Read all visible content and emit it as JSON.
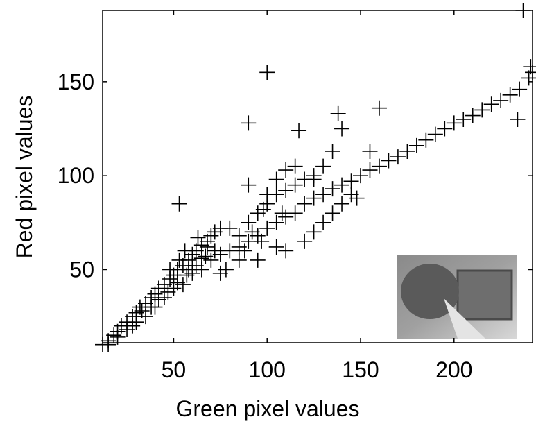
{
  "chart_data": {
    "type": "scatter",
    "xlabel": "Green pixel values",
    "ylabel": "Red pixel values",
    "xlim": [
      12,
      242
    ],
    "ylim": [
      11,
      188
    ],
    "xticks": [
      50,
      100,
      150,
      200
    ],
    "yticks": [
      50,
      100,
      150
    ],
    "color": "#000000",
    "x": [
      12,
      15,
      18,
      20,
      22,
      25,
      28,
      30,
      32,
      35,
      38,
      40,
      42,
      45,
      48,
      50,
      52,
      55,
      58,
      60,
      62,
      65,
      68,
      70,
      72,
      75,
      40,
      45,
      50,
      55,
      60,
      65,
      70,
      75,
      80,
      85,
      90,
      95,
      100,
      105,
      110,
      115,
      120,
      125,
      130,
      135,
      140,
      145,
      150,
      155,
      160,
      165,
      170,
      175,
      180,
      185,
      190,
      195,
      200,
      205,
      210,
      215,
      220,
      225,
      230,
      235,
      240,
      242,
      241,
      80,
      85,
      90,
      95,
      100,
      105,
      110,
      115,
      120,
      125,
      95,
      97,
      105,
      110,
      120,
      125,
      130,
      135,
      140,
      145,
      148,
      100,
      105,
      110,
      115,
      92,
      88,
      85,
      78,
      75,
      90,
      98,
      108,
      100,
      90,
      117,
      138,
      140,
      160,
      135,
      53,
      155,
      237,
      234,
      125,
      130,
      15,
      20,
      25,
      30,
      35,
      28,
      33,
      38,
      42,
      47,
      52,
      57,
      62,
      67,
      72,
      60,
      65,
      68,
      58,
      48,
      53,
      56,
      63
    ],
    "y": [
      10,
      12,
      15,
      17,
      20,
      22,
      25,
      27,
      30,
      32,
      35,
      37,
      40,
      42,
      45,
      47,
      50,
      52,
      55,
      58,
      60,
      63,
      65,
      68,
      70,
      72,
      30,
      35,
      40,
      42,
      48,
      50,
      55,
      58,
      60,
      62,
      65,
      68,
      72,
      75,
      78,
      80,
      85,
      88,
      90,
      93,
      95,
      97,
      100,
      103,
      105,
      108,
      110,
      113,
      116,
      119,
      122,
      125,
      128,
      130,
      132,
      135,
      138,
      140,
      143,
      146,
      152,
      155,
      158,
      72,
      68,
      75,
      80,
      85,
      90,
      92,
      95,
      98,
      100,
      55,
      65,
      62,
      60,
      65,
      70,
      75,
      80,
      85,
      90,
      88,
      90,
      98,
      103,
      105,
      70,
      60,
      55,
      50,
      48,
      95,
      82,
      80,
      155,
      128,
      124,
      133,
      125,
      136,
      113,
      85,
      113,
      188,
      130,
      98,
      105,
      10,
      14,
      18,
      22,
      25,
      20,
      28,
      30,
      34,
      38,
      43,
      47,
      52,
      57,
      60,
      52,
      56,
      62,
      50,
      50,
      55,
      60,
      67
    ]
  }
}
